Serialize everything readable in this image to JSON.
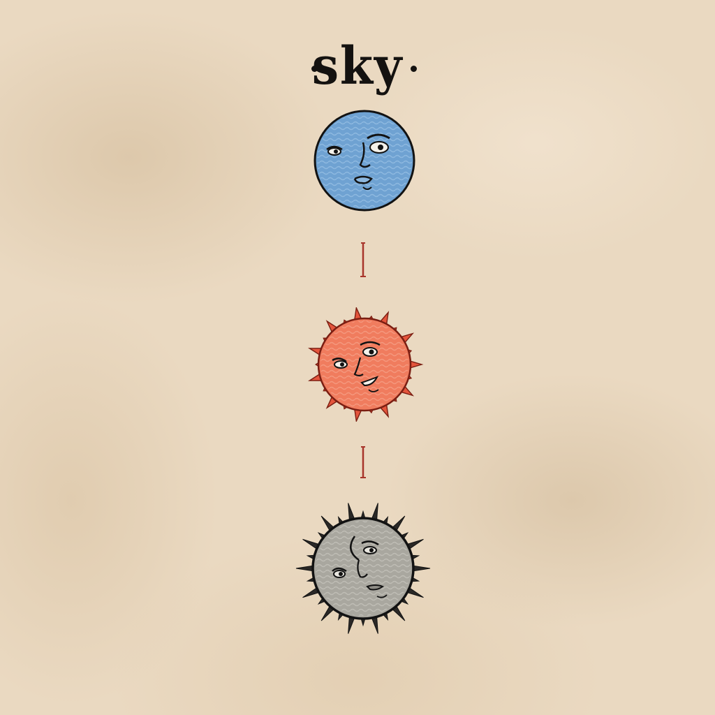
{
  "title": {
    "text": "sky"
  },
  "figures": [
    {
      "name": "moon",
      "color": "#6fa2d2",
      "icon": "moon-face-icon"
    },
    {
      "name": "sun",
      "color": "#f07c5e",
      "icon": "sun-face-icon"
    },
    {
      "name": "eclipse",
      "color": "#a9a79f",
      "icon": "grey-sun-face-icon"
    }
  ],
  "connector_color": "#a8352b"
}
